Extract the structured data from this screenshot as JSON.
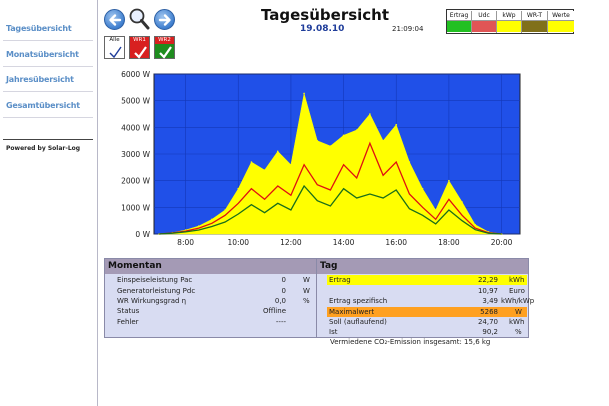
{
  "sidebar": {
    "items": [
      {
        "label": "Tagesübersicht"
      },
      {
        "label": "Monatsübersicht"
      },
      {
        "label": "Jahresübersicht"
      },
      {
        "label": "Gesamtübersicht"
      }
    ],
    "powered_by": "Powered by Solar-Log"
  },
  "header": {
    "title": "Tagesübersicht",
    "date": "19.08.10",
    "time": "21:09:04"
  },
  "devices": [
    {
      "label": "Alle",
      "color": "#ffffff",
      "checked": true
    },
    {
      "label": "WR1",
      "color": "#d82020",
      "checked": true
    },
    {
      "label": "WR2",
      "color": "#1e8c1e",
      "checked": true
    }
  ],
  "legend": [
    {
      "label": "Ertrag",
      "color": "#22c022"
    },
    {
      "label": "Udc",
      "color": "#e05555"
    },
    {
      "label": "kWp",
      "color": "#ffff00"
    },
    {
      "label": "WR-T",
      "color": "#80701a"
    },
    {
      "label": "Werte",
      "color": "#ffff00"
    }
  ],
  "colors": {
    "plot_bg": "#2050e8",
    "bars": "#ffff00",
    "series_red": "#e01010",
    "series_green": "#1a6e1a",
    "highlight_yellow": "#ffff00",
    "highlight_orange": "#ffa020"
  },
  "chart_data": {
    "type": "area",
    "x_tick_labels": [
      "8:00",
      "10:00",
      "12:00",
      "14:00",
      "16:00",
      "18:00",
      "20:00"
    ],
    "y_tick_labels": [
      "0 W",
      "1000 W",
      "2000 W",
      "3000 W",
      "4000 W",
      "5000 W",
      "6000 W"
    ],
    "xlim": [
      6.8,
      20.7
    ],
    "ylim": [
      0,
      6000
    ],
    "grid": true,
    "x": [
      7.0,
      7.5,
      8.0,
      8.5,
      9.0,
      9.5,
      10.0,
      10.5,
      11.0,
      11.5,
      12.0,
      12.5,
      13.0,
      13.5,
      14.0,
      14.5,
      15.0,
      15.5,
      16.0,
      16.5,
      17.0,
      17.5,
      18.0,
      18.5,
      19.0,
      19.5,
      20.0
    ],
    "series": [
      {
        "values": [
          0,
          50,
          150,
          300,
          550,
          900,
          1700,
          2700,
          2400,
          3100,
          2600,
          5270,
          3500,
          3300,
          3700,
          3900,
          4500,
          3500,
          4100,
          2700,
          1700,
          900,
          2000,
          1200,
          350,
          80,
          0
        ]
      },
      {
        "values": [
          0,
          40,
          110,
          220,
          400,
          700,
          1150,
          1700,
          1300,
          1800,
          1450,
          2600,
          1850,
          1650,
          2600,
          2100,
          3400,
          2200,
          2700,
          1500,
          1000,
          550,
          1300,
          700,
          220,
          50,
          0
        ]
      },
      {
        "values": [
          0,
          30,
          80,
          150,
          280,
          450,
          750,
          1100,
          800,
          1150,
          900,
          1800,
          1250,
          1050,
          1700,
          1350,
          1500,
          1350,
          1650,
          950,
          700,
          380,
          900,
          500,
          160,
          30,
          0
        ]
      }
    ]
  },
  "momentan": {
    "title": "Momentan",
    "rows": [
      {
        "label": "Einspeiseleistung Pac",
        "value": "0",
        "unit": "W"
      },
      {
        "label": "Generatorleistung Pdc",
        "value": "0",
        "unit": "W"
      },
      {
        "label": "WR Wirkungsgrad η",
        "value": "0,0",
        "unit": "%"
      },
      {
        "label": "Status",
        "value": "Offline",
        "unit": ""
      },
      {
        "label": "Fehler",
        "value": "----",
        "unit": ""
      }
    ]
  },
  "tag": {
    "title": "Tag",
    "rows": [
      {
        "label": "Ertrag",
        "value": "22,29",
        "unit": "kWh",
        "highlight": "yellow"
      },
      {
        "label": "",
        "value": "10,97",
        "unit": "Euro",
        "highlight": ""
      },
      {
        "label": "Ertrag spezifisch",
        "value": "3,49",
        "unit": "kWh/kWp",
        "highlight": ""
      },
      {
        "label": "Maximalwert",
        "value": "5268",
        "unit": "W",
        "highlight": "orange"
      },
      {
        "label": "Soll (auflaufend)",
        "value": "24,70",
        "unit": "kWh",
        "highlight": ""
      },
      {
        "label": "Ist",
        "value": "90,2",
        "unit": "%",
        "highlight": ""
      }
    ]
  },
  "co2_text": "Vermiedene CO₂-Emission insgesamt: 15,6 kg"
}
